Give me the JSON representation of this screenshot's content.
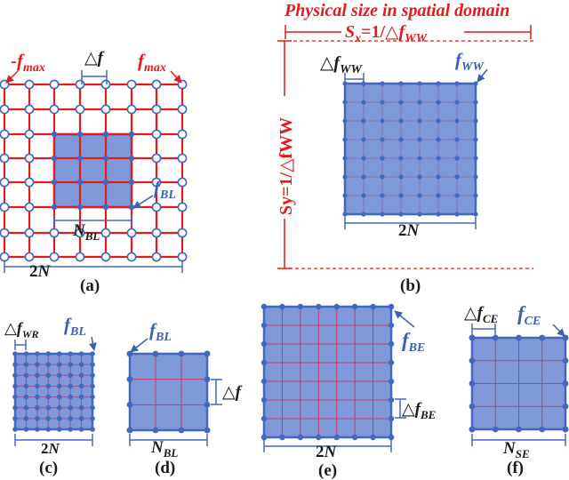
{
  "colors": {
    "grid_red": "#e41a1c",
    "blue": "#4267c0",
    "blue_fill": "#7f98d8",
    "node_fill": "#ffffff",
    "text_dark": "#1a1a1a"
  },
  "panel_a": {
    "caption": "(a)",
    "neg_fmax_sign": "-",
    "f_letter": "f",
    "max_sub": "max",
    "delta_sym": "△",
    "f_letter_delta": "f",
    "bl_sub": "BL",
    "n_letter": "N",
    "two_n": "2",
    "two_n_letter": "N"
  },
  "panel_b": {
    "caption": "(b)",
    "title": "Physical size in spatial domain",
    "sx_s": "S",
    "sx_sub": "x",
    "sx_eq": "=1/△",
    "sx_f": "f",
    "sx_fsub": "WW",
    "sy_label": "Sy=1/△fWW",
    "delta_sym": "△",
    "f_letter": "f",
    "ww_sub": "WW",
    "two_n": "2",
    "two_n_letter": "N"
  },
  "panel_c": {
    "caption": "(c)",
    "delta_sym": "△",
    "f_letter": "f",
    "wr_sub": "WR",
    "bl_sub": "BL",
    "two_n": "2",
    "two_n_letter": "N"
  },
  "panel_d": {
    "caption": "(d)",
    "f_letter": "f",
    "bl_sub": "BL",
    "delta_sym": "△",
    "delta_f": "f",
    "n_letter": "N",
    "n_sub": "BL"
  },
  "panel_e": {
    "caption": "(e)",
    "f_letter": "f",
    "be_sub": "BE",
    "delta_sym": "△",
    "two_n": "2",
    "two_n_letter": "N"
  },
  "panel_f": {
    "caption": "(f)",
    "delta_sym": "△",
    "f_letter": "f",
    "ce_sub": "CE",
    "n_letter": "N",
    "se_sub": "SE"
  }
}
